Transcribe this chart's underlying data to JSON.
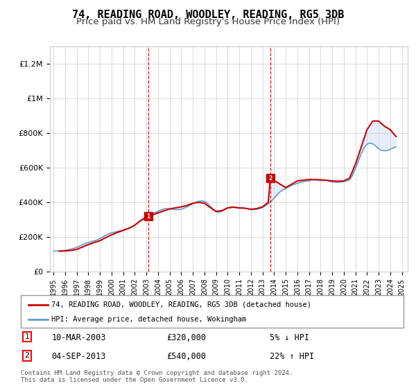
{
  "title": "74, READING ROAD, WOODLEY, READING, RG5 3DB",
  "subtitle": "Price paid vs. HM Land Registry's House Price Index (HPI)",
  "title_fontsize": 11,
  "subtitle_fontsize": 9.5,
  "ylabel": "",
  "xlabel": "",
  "ylim": [
    0,
    1300000
  ],
  "yticks": [
    0,
    200000,
    400000,
    600000,
    800000,
    1000000,
    1200000
  ],
  "ytick_labels": [
    "£0",
    "£200K",
    "£400K",
    "£600K",
    "£800K",
    "£1M",
    "£1.2M"
  ],
  "x_start": 1995,
  "x_end": 2025.5,
  "xticks": [
    1995,
    1996,
    1997,
    1998,
    1999,
    2000,
    2001,
    2002,
    2003,
    2004,
    2005,
    2006,
    2007,
    2008,
    2009,
    2010,
    2011,
    2012,
    2013,
    2014,
    2015,
    2016,
    2017,
    2018,
    2019,
    2020,
    2021,
    2022,
    2023,
    2024,
    2025
  ],
  "background_color": "#ffffff",
  "plot_bg_color": "#ffffff",
  "grid_color": "#cccccc",
  "shade_color": "#cce0f5",
  "hpi_color": "#6699cc",
  "price_color": "#cc0000",
  "transaction1_x": 2003.19,
  "transaction1_y": 320000,
  "transaction2_x": 2013.67,
  "transaction2_y": 540000,
  "legend_line1": "74, READING ROAD, WOODLEY, READING, RG5 3DB (detached house)",
  "legend_line2": "HPI: Average price, detached house, Wokingham",
  "annotation1_label": "1",
  "annotation1_date": "10-MAR-2003",
  "annotation1_price": "£320,000",
  "annotation1_change": "5% ↓ HPI",
  "annotation2_label": "2",
  "annotation2_date": "04-SEP-2013",
  "annotation2_price": "£540,000",
  "annotation2_change": "22% ↑ HPI",
  "copyright_text": "Contains HM Land Registry data © Crown copyright and database right 2024.\nThis data is licensed under the Open Government Licence v3.0.",
  "hpi_data_x": [
    1995.0,
    1995.25,
    1995.5,
    1995.75,
    1996.0,
    1996.25,
    1996.5,
    1996.75,
    1997.0,
    1997.25,
    1997.5,
    1997.75,
    1998.0,
    1998.25,
    1998.5,
    1998.75,
    1999.0,
    1999.25,
    1999.5,
    1999.75,
    2000.0,
    2000.25,
    2000.5,
    2000.75,
    2001.0,
    2001.25,
    2001.5,
    2001.75,
    2002.0,
    2002.25,
    2002.5,
    2002.75,
    2003.0,
    2003.25,
    2003.5,
    2003.75,
    2004.0,
    2004.25,
    2004.5,
    2004.75,
    2005.0,
    2005.25,
    2005.5,
    2005.75,
    2006.0,
    2006.25,
    2006.5,
    2006.75,
    2007.0,
    2007.25,
    2007.5,
    2007.75,
    2008.0,
    2008.25,
    2008.5,
    2008.75,
    2009.0,
    2009.25,
    2009.5,
    2009.75,
    2010.0,
    2010.25,
    2010.5,
    2010.75,
    2011.0,
    2011.25,
    2011.5,
    2011.75,
    2012.0,
    2012.25,
    2012.5,
    2012.75,
    2013.0,
    2013.25,
    2013.5,
    2013.75,
    2014.0,
    2014.25,
    2014.5,
    2014.75,
    2015.0,
    2015.25,
    2015.5,
    2015.75,
    2016.0,
    2016.25,
    2016.5,
    2016.75,
    2017.0,
    2017.25,
    2017.5,
    2017.75,
    2018.0,
    2018.25,
    2018.5,
    2018.75,
    2019.0,
    2019.25,
    2019.5,
    2019.75,
    2020.0,
    2020.25,
    2020.5,
    2020.75,
    2021.0,
    2021.25,
    2021.5,
    2021.75,
    2022.0,
    2022.25,
    2022.5,
    2022.75,
    2023.0,
    2023.25,
    2023.5,
    2023.75,
    2024.0,
    2024.25,
    2024.5
  ],
  "hpi_data_y": [
    118000,
    119000,
    120000,
    121000,
    123000,
    126000,
    130000,
    134000,
    140000,
    148000,
    156000,
    163000,
    168000,
    173000,
    178000,
    183000,
    190000,
    200000,
    210000,
    218000,
    224000,
    228000,
    232000,
    236000,
    240000,
    246000,
    252000,
    258000,
    268000,
    282000,
    296000,
    308000,
    318000,
    328000,
    336000,
    342000,
    348000,
    356000,
    362000,
    364000,
    362000,
    360000,
    358000,
    358000,
    360000,
    366000,
    374000,
    382000,
    392000,
    400000,
    406000,
    408000,
    406000,
    396000,
    378000,
    360000,
    346000,
    342000,
    348000,
    358000,
    368000,
    374000,
    374000,
    370000,
    366000,
    368000,
    366000,
    362000,
    358000,
    358000,
    360000,
    364000,
    370000,
    380000,
    392000,
    406000,
    424000,
    444000,
    460000,
    472000,
    480000,
    490000,
    498000,
    504000,
    510000,
    516000,
    520000,
    522000,
    524000,
    528000,
    530000,
    528000,
    526000,
    526000,
    526000,
    522000,
    518000,
    516000,
    516000,
    518000,
    520000,
    524000,
    530000,
    556000,
    596000,
    638000,
    680000,
    716000,
    736000,
    742000,
    738000,
    726000,
    710000,
    700000,
    698000,
    700000,
    706000,
    714000,
    720000
  ],
  "price_data_x": [
    1995.5,
    1996.0,
    1996.5,
    1997.0,
    1997.5,
    1998.0,
    1998.5,
    1999.0,
    1999.5,
    2000.0,
    2000.5,
    2001.0,
    2001.5,
    2002.0,
    2002.5,
    2003.19,
    2005.0,
    2006.0,
    2006.5,
    2007.0,
    2007.5,
    2008.0,
    2008.5,
    2009.0,
    2009.5,
    2010.0,
    2010.5,
    2011.0,
    2011.5,
    2012.0,
    2012.5,
    2013.0,
    2013.5,
    2013.67,
    2015.0,
    2016.0,
    2016.5,
    2017.0,
    2017.5,
    2018.0,
    2018.5,
    2019.0,
    2019.5,
    2020.0,
    2020.5,
    2021.0,
    2021.5,
    2022.0,
    2022.5,
    2023.0,
    2023.5,
    2024.0,
    2024.5
  ],
  "price_data_y": [
    118000,
    119000,
    122000,
    128000,
    142000,
    156000,
    168000,
    178000,
    196000,
    212000,
    226000,
    238000,
    250000,
    268000,
    294000,
    320000,
    362000,
    374000,
    382000,
    395000,
    400000,
    395000,
    370000,
    348000,
    352000,
    368000,
    372000,
    368000,
    366000,
    360000,
    364000,
    374000,
    400000,
    540000,
    485000,
    524000,
    528000,
    532000,
    532000,
    530000,
    528000,
    524000,
    522000,
    524000,
    540000,
    620000,
    720000,
    820000,
    870000,
    870000,
    840000,
    820000,
    780000
  ]
}
